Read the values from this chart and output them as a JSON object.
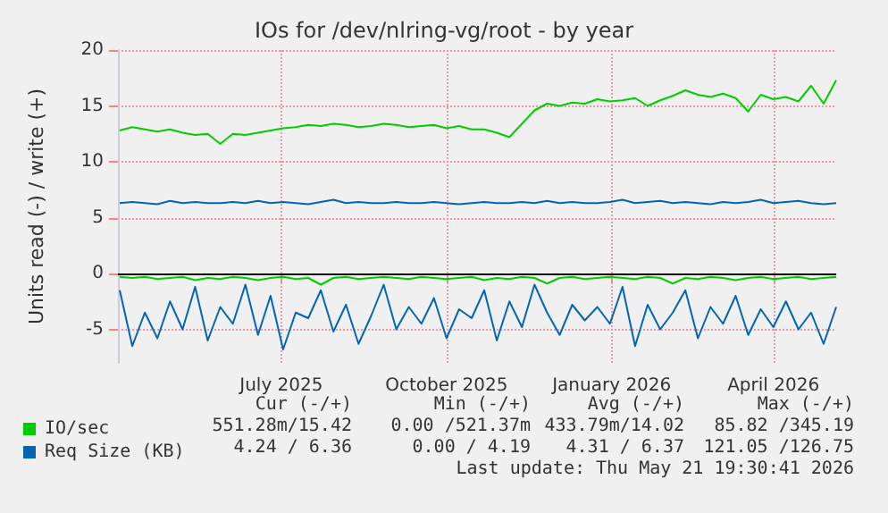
{
  "chart_data": {
    "type": "line",
    "title": "IOs for /dev/nlring-vg/root - by year",
    "ylabel": "Units read (-) / write (+)",
    "x": [
      "2025-04-17",
      "2025-04-24",
      "2025-05-01",
      "2025-05-08",
      "2025-05-15",
      "2025-05-22",
      "2025-05-29",
      "2025-06-05",
      "2025-06-12",
      "2025-06-19",
      "2025-06-26",
      "2025-07-03",
      "2025-07-10",
      "2025-07-17",
      "2025-07-24",
      "2025-07-31",
      "2025-08-07",
      "2025-08-14",
      "2025-08-21",
      "2025-08-28",
      "2025-09-04",
      "2025-09-11",
      "2025-09-18",
      "2025-09-25",
      "2025-10-02",
      "2025-10-09",
      "2025-10-16",
      "2025-10-23",
      "2025-10-30",
      "2025-11-06",
      "2025-11-13",
      "2025-11-20",
      "2025-11-27",
      "2025-12-04",
      "2025-12-11",
      "2025-12-18",
      "2025-12-25",
      "2026-01-01",
      "2026-01-08",
      "2026-01-15",
      "2026-01-22",
      "2026-01-29",
      "2026-02-05",
      "2026-02-12",
      "2026-02-19",
      "2026-02-26",
      "2026-03-05",
      "2026-03-12",
      "2026-03-19",
      "2026-03-26",
      "2026-04-02",
      "2026-04-09",
      "2026-04-16",
      "2026-04-23",
      "2026-04-30",
      "2026-05-07",
      "2026-05-14",
      "2026-05-21"
    ],
    "series": [
      {
        "name": "IO/sec",
        "color": "#00cc00",
        "values": [
          12.8,
          13.1,
          12.9,
          12.7,
          12.9,
          12.6,
          12.4,
          12.5,
          11.6,
          12.5,
          12.4,
          12.6,
          12.8,
          13.0,
          13.1,
          13.3,
          13.2,
          13.4,
          13.3,
          13.1,
          13.2,
          13.4,
          13.3,
          13.1,
          13.2,
          13.3,
          13.0,
          13.2,
          12.9,
          12.9,
          12.6,
          12.2,
          13.4,
          14.6,
          15.2,
          15.0,
          15.3,
          15.2,
          15.6,
          15.4,
          15.5,
          15.7,
          15.0,
          15.5,
          15.9,
          16.4,
          16.0,
          15.8,
          16.1,
          15.7,
          14.5,
          16.0,
          15.6,
          15.8,
          15.4,
          16.8,
          15.2,
          17.3
        ]
      },
      {
        "color": "#00cc00",
        "values": [
          -0.3,
          -0.4,
          -0.3,
          -0.5,
          -0.4,
          -0.3,
          -0.6,
          -0.4,
          -0.5,
          -0.3,
          -0.4,
          -0.6,
          -0.4,
          -0.3,
          -0.5,
          -0.4,
          -1.0,
          -0.4,
          -0.3,
          -0.5,
          -0.4,
          -0.3,
          -0.4,
          -0.5,
          -0.3,
          -0.4,
          -0.5,
          -0.4,
          -0.3,
          -0.6,
          -0.4,
          -0.5,
          -0.3,
          -0.4,
          -0.9,
          -0.4,
          -0.3,
          -0.5,
          -0.4,
          -0.3,
          -0.4,
          -0.5,
          -0.3,
          -0.4,
          -0.9,
          -0.4,
          -0.5,
          -0.3,
          -0.4,
          -0.6,
          -0.4,
          -0.3,
          -0.5,
          -0.4,
          -0.3,
          -0.5,
          -0.4,
          -0.3
        ]
      },
      {
        "name": "Req Size (KB)",
        "color": "#0066b3",
        "values": [
          6.3,
          6.4,
          6.3,
          6.2,
          6.5,
          6.3,
          6.4,
          6.3,
          6.3,
          6.4,
          6.3,
          6.5,
          6.3,
          6.4,
          6.3,
          6.2,
          6.4,
          6.6,
          6.3,
          6.4,
          6.3,
          6.3,
          6.4,
          6.3,
          6.3,
          6.4,
          6.3,
          6.2,
          6.3,
          6.4,
          6.3,
          6.3,
          6.4,
          6.3,
          6.5,
          6.3,
          6.4,
          6.3,
          6.3,
          6.4,
          6.6,
          6.3,
          6.4,
          6.5,
          6.3,
          6.4,
          6.3,
          6.2,
          6.4,
          6.3,
          6.4,
          6.6,
          6.3,
          6.4,
          6.5,
          6.3,
          6.2,
          6.3
        ]
      },
      {
        "color": "#0066b3",
        "values": [
          -1.5,
          -6.5,
          -3.5,
          -5.8,
          -2.5,
          -5.0,
          -1.2,
          -6.0,
          -3.0,
          -4.5,
          -1.0,
          -5.5,
          -2.0,
          -6.8,
          -3.5,
          -4.0,
          -1.5,
          -5.2,
          -2.8,
          -6.3,
          -3.8,
          -1.0,
          -5.0,
          -3.0,
          -4.5,
          -2.2,
          -5.8,
          -3.2,
          -4.0,
          -1.5,
          -6.0,
          -2.5,
          -4.8,
          -1.0,
          -3.5,
          -5.5,
          -2.8,
          -4.2,
          -3.0,
          -4.5,
          -1.2,
          -6.5,
          -2.8,
          -5.0,
          -3.5,
          -1.5,
          -5.8,
          -3.0,
          -4.5,
          -2.0,
          -5.5,
          -3.2,
          -4.8,
          -2.5,
          -5.0,
          -3.5,
          -6.3,
          -3.0
        ]
      }
    ],
    "xlim": [
      "2025-04-16",
      "2026-05-21"
    ],
    "xticks": [
      {
        "value": "2025-07-16",
        "label": "July 2025"
      },
      {
        "value": "2025-10-16",
        "label": "October 2025"
      },
      {
        "value": "2026-01-16",
        "label": "January 2026"
      },
      {
        "value": "2026-04-16",
        "label": "April 2026"
      }
    ],
    "ylim": [
      -8,
      20
    ],
    "yticks": [
      -5,
      0,
      5,
      10,
      15,
      20
    ],
    "ref_lines": [
      {
        "axis": "y",
        "value": 0,
        "color": "#000000"
      }
    ],
    "grid": true,
    "legend": "bottom left",
    "marker": "none",
    "line_style": "solid",
    "annotations": [
      "Cur (-/+)",
      "Min (-/+)",
      "Avg (-/+)",
      "Max (-/+)",
      "551.28m/15.42",
      "0.00 /521.37m",
      "433.79m/14.02",
      "85.82 /345.19",
      "4.24 / 6.36",
      "0.00 / 4.19",
      "4.31 / 6.37",
      "121.05 /126.75",
      "Last update: Thu May 21 19:30:41 2026"
    ]
  }
}
